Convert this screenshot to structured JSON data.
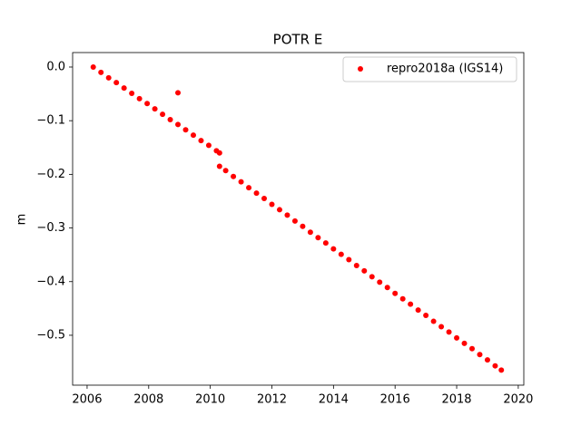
{
  "chart_data": {
    "type": "scatter",
    "title": "POTR E",
    "y_label": "m",
    "legend": "upper right",
    "grid": false,
    "xlim": [
      2005.53,
      2020.18
    ],
    "ylim": [
      -0.593,
      0.027
    ],
    "xticks": [
      2006,
      2008,
      2010,
      2012,
      2014,
      2016,
      2018,
      2020
    ],
    "yticks": [
      {
        "value": 0,
        "label": "0.0"
      },
      {
        "value": -0.1,
        "label": "−0.1"
      },
      {
        "value": -0.2,
        "label": "−0.2"
      },
      {
        "value": -0.3,
        "label": "−0.3"
      },
      {
        "value": -0.4,
        "label": "−0.4"
      },
      {
        "value": -0.5,
        "label": "−0.5"
      }
    ],
    "series": [
      {
        "name": "repro2018a (IGS14)",
        "color": "#ff0000",
        "x": [
          2006.2,
          2006.45,
          2006.7,
          2006.95,
          2007.2,
          2007.45,
          2007.7,
          2007.95,
          2008.2,
          2008.45,
          2008.7,
          2008.95,
          2008.95,
          2009.2,
          2009.45,
          2009.7,
          2009.95,
          2010.2,
          2010.3,
          2010.3,
          2010.5,
          2010.75,
          2011.0,
          2011.25,
          2011.5,
          2011.75,
          2012.0,
          2012.25,
          2012.5,
          2012.75,
          2013.0,
          2013.25,
          2013.5,
          2013.75,
          2014.0,
          2014.25,
          2014.5,
          2014.75,
          2015.0,
          2015.25,
          2015.5,
          2015.75,
          2016.0,
          2016.25,
          2016.5,
          2016.75,
          2017.0,
          2017.25,
          2017.5,
          2017.75,
          2018.0,
          2018.25,
          2018.5,
          2018.75,
          2019.0,
          2019.25,
          2019.45
        ],
        "values": [
          0,
          -0.01,
          -0.02,
          -0.029,
          -0.039,
          -0.049,
          -0.059,
          -0.068,
          -0.078,
          -0.088,
          -0.098,
          -0.107,
          -0.048,
          -0.117,
          -0.127,
          -0.137,
          -0.146,
          -0.156,
          -0.16,
          -0.185,
          -0.193,
          -0.204,
          -0.214,
          -0.225,
          -0.235,
          -0.245,
          -0.256,
          -0.266,
          -0.276,
          -0.287,
          -0.297,
          -0.308,
          -0.318,
          -0.328,
          -0.339,
          -0.349,
          -0.359,
          -0.37,
          -0.38,
          -0.391,
          -0.401,
          -0.411,
          -0.422,
          -0.432,
          -0.442,
          -0.453,
          -0.463,
          -0.474,
          -0.484,
          -0.494,
          -0.505,
          -0.515,
          -0.525,
          -0.536,
          -0.546,
          -0.557,
          -0.565
        ]
      }
    ]
  }
}
